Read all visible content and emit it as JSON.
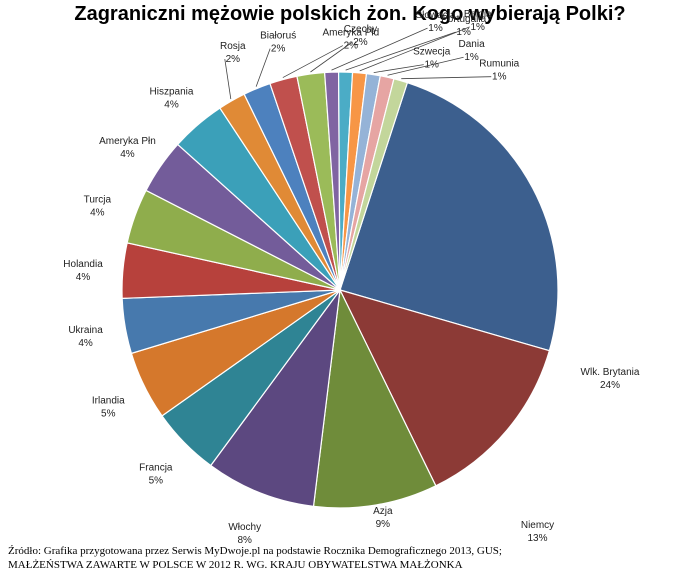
{
  "chart_data": {
    "type": "pie",
    "title": "Zagraniczni mężowie polskich żon. Kogo wybierają Polki?",
    "slices": [
      {
        "label": "Wlk. Brytania",
        "value": 24,
        "display": "24%",
        "color": "#3c5f8e"
      },
      {
        "label": "Niemcy",
        "value": 13,
        "display": "13%",
        "color": "#8c3a36"
      },
      {
        "label": "Azja",
        "value": 9,
        "display": "9%",
        "color": "#6f8c3a"
      },
      {
        "label": "Włochy",
        "value": 8,
        "display": "8%",
        "color": "#5c4880"
      },
      {
        "label": "Francja",
        "value": 5,
        "display": "5%",
        "color": "#2f8494"
      },
      {
        "label": "Irlandia",
        "value": 5,
        "display": "5%",
        "color": "#d5782c"
      },
      {
        "label": "Ukraina",
        "value": 4,
        "display": "4%",
        "color": "#4779ad"
      },
      {
        "label": "Holandia",
        "value": 4,
        "display": "4%",
        "color": "#b7413c"
      },
      {
        "label": "Turcja",
        "value": 4,
        "display": "4%",
        "color": "#8fad4c"
      },
      {
        "label": "Ameryka Płn",
        "value": 4,
        "display": "4%",
        "color": "#735c9a"
      },
      {
        "label": "Hiszpania",
        "value": 4,
        "display": "4%",
        "color": "#3ba0b9"
      },
      {
        "label": "Rosja",
        "value": 2,
        "display": "2%",
        "color": "#e08a36"
      },
      {
        "label": "Białoruś",
        "value": 2,
        "display": "2%",
        "color": "#4d81be"
      },
      {
        "label": "Ameryka Płd",
        "value": 2,
        "display": "2%",
        "color": "#c0504d"
      },
      {
        "label": "Czechy",
        "value": 2,
        "display": "2%",
        "color": "#9bbb59"
      },
      {
        "label": "Słowacja",
        "value": 1,
        "display": "1%",
        "color": "#8064a2"
      },
      {
        "label": "Portugalia",
        "value": 1,
        "display": "1%",
        "color": "#4bacc6"
      },
      {
        "label": "Belgia",
        "value": 1,
        "display": "1%",
        "color": "#f79646"
      },
      {
        "label": "Szwecja",
        "value": 1,
        "display": "1%",
        "color": "#95b3d7"
      },
      {
        "label": "Dania",
        "value": 1,
        "display": "1%",
        "color": "#e6a5a3"
      },
      {
        "label": "Rumunia",
        "value": 1,
        "display": "1%",
        "color": "#c3d69b"
      }
    ]
  },
  "source": {
    "line1": "Źródło:  Grafika przygotowana przez Serwis MyDwoje.pl na podstawie Rocznika Demograficznego 2013, GUS;",
    "line2": "MAŁŻEŃSTWA ZAWARTE W POLSCE W 2012 R. WG. KRAJU OBYWATELSTWA MAŁŻONKA"
  }
}
